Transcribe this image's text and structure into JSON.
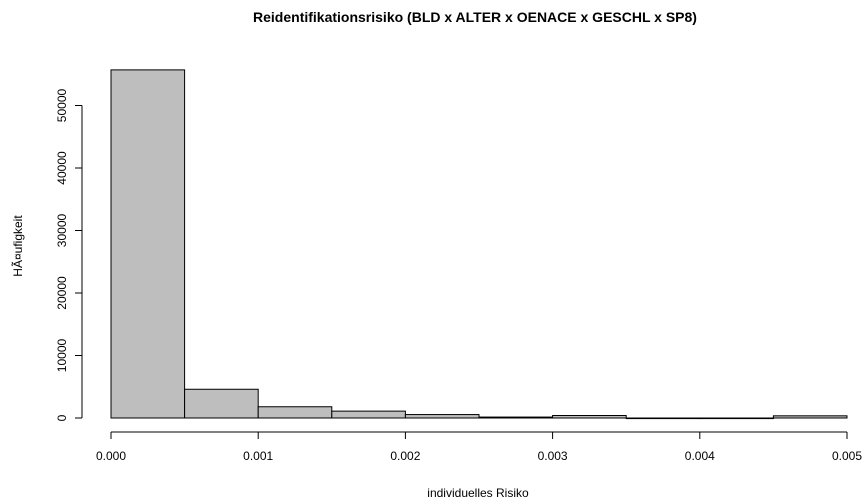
{
  "chart_data": {
    "type": "bar",
    "title": "Reidentifikationsrisiko (BLD x ALTER x OENACE x GESCHL x SP8)",
    "xlabel": "individuelles Risiko",
    "ylabel": "HÃ¤ufigkeit",
    "bin_edges": [
      0.0,
      0.0005,
      0.001,
      0.0015,
      0.002,
      0.0025,
      0.003,
      0.0035,
      0.004,
      0.0045,
      0.005
    ],
    "values": [
      55700,
      4600,
      1800,
      1100,
      550,
      150,
      400,
      0,
      0,
      350
    ],
    "xlim": [
      0.0,
      0.005
    ],
    "ylim": [
      0,
      56000
    ],
    "x_ticks": [
      0.0,
      0.001,
      0.002,
      0.003,
      0.004,
      0.005
    ],
    "x_tick_labels": [
      "0.000",
      "0.001",
      "0.002",
      "0.003",
      "0.004",
      "0.005"
    ],
    "y_ticks": [
      0,
      10000,
      20000,
      30000,
      40000,
      50000
    ],
    "y_tick_labels": [
      "0",
      "10000",
      "20000",
      "30000",
      "40000",
      "50000"
    ],
    "bar_fill": "#bebebe",
    "bar_stroke": "#000000",
    "grid": false,
    "legend": "none"
  }
}
